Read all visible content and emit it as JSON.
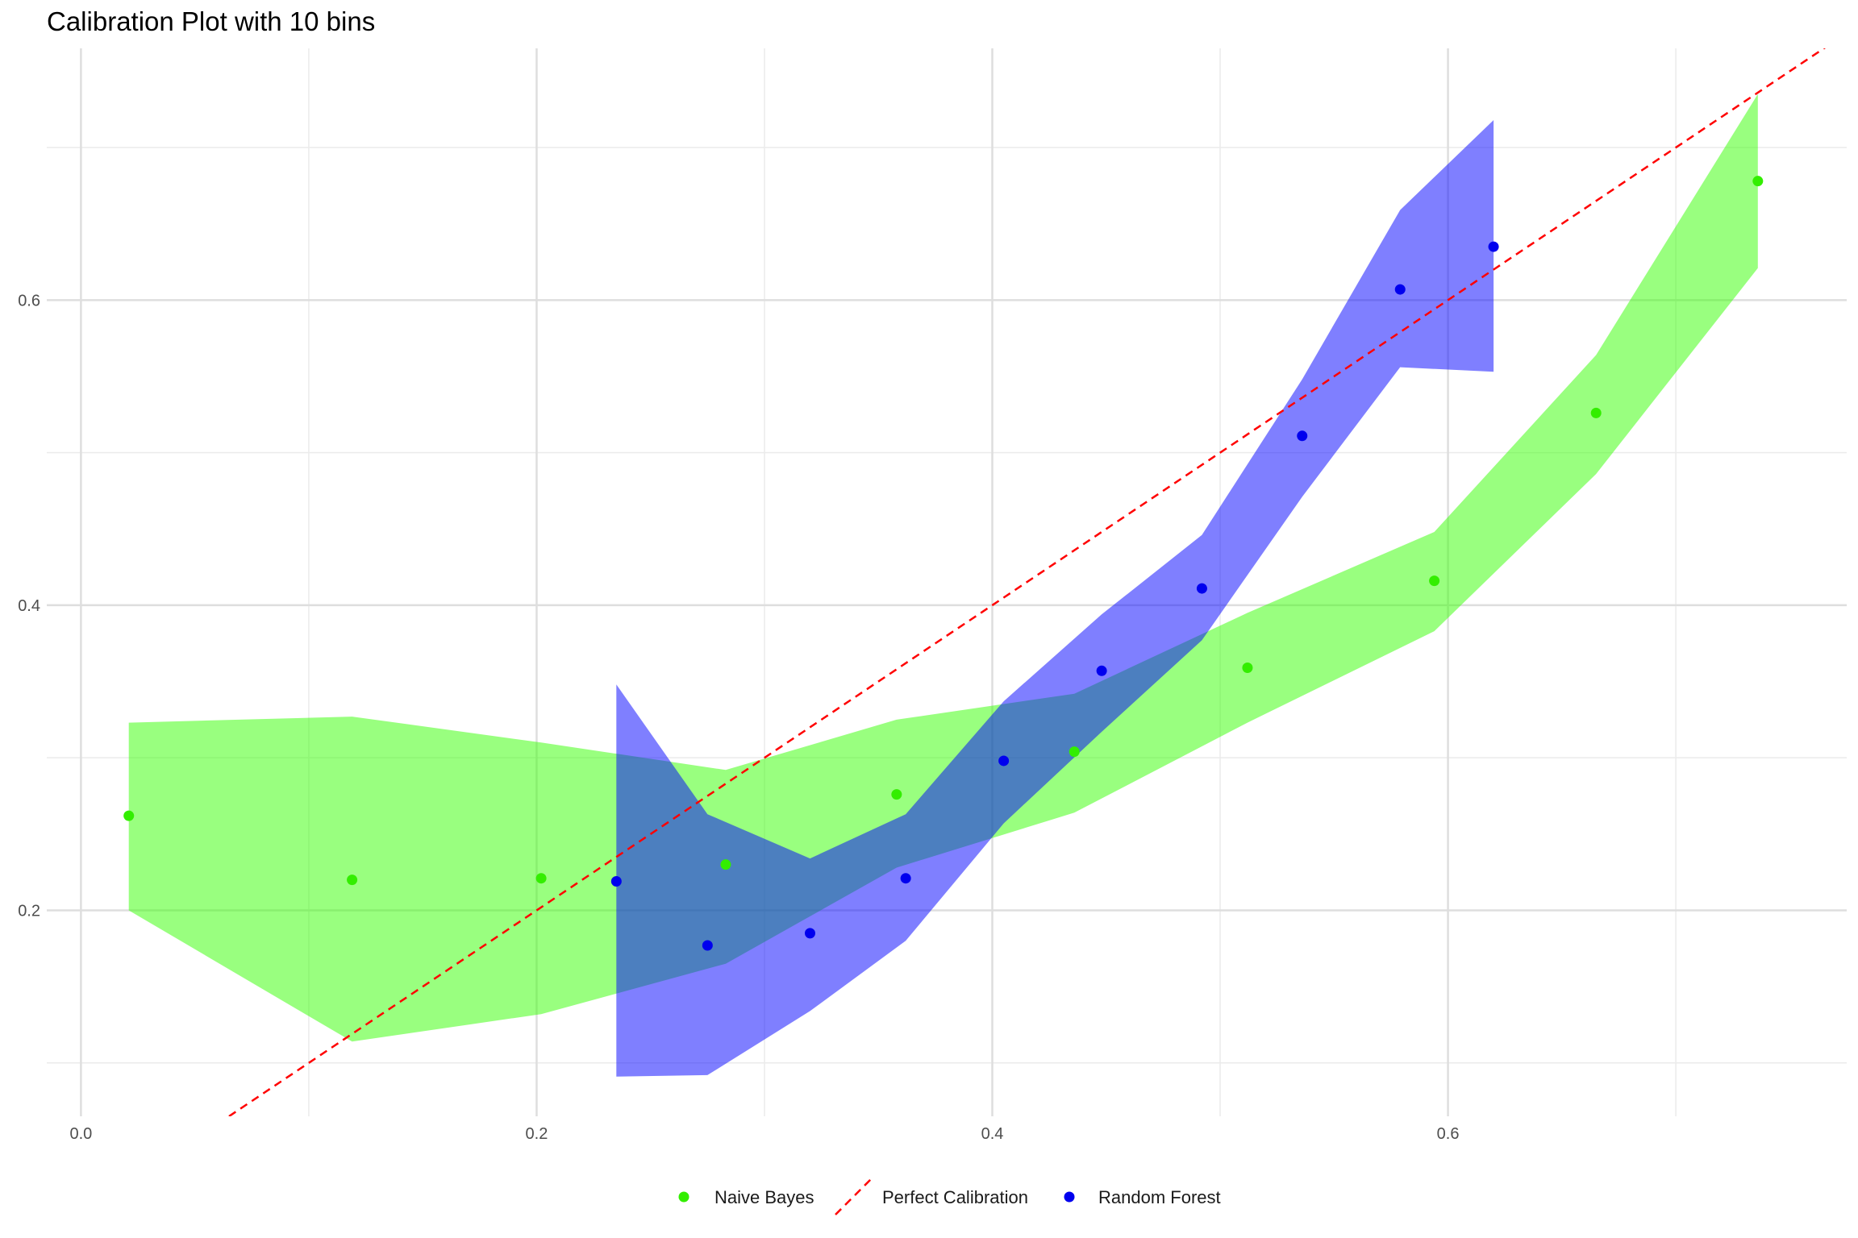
{
  "chart_data": {
    "type": "line",
    "title": "Calibration Plot with 10 bins",
    "xlabel": "",
    "ylabel": "",
    "xlim": [
      -0.015,
      0.775
    ],
    "ylim": [
      0.065,
      0.765
    ],
    "xticks": [
      0.0,
      0.2,
      0.4,
      0.6
    ],
    "xtick_labels": [
      "0.0",
      "0.2",
      "0.4",
      "0.6"
    ],
    "xminor": [
      0.1,
      0.3,
      0.5,
      0.7
    ],
    "yticks": [
      0.2,
      0.4,
      0.6
    ],
    "ytick_labels": [
      "0.2",
      "0.4",
      "0.6"
    ],
    "yminor": [
      0.1,
      0.3,
      0.5,
      0.7
    ],
    "grid": true,
    "legend_position": "bottom",
    "series": [
      {
        "name": "Naive Bayes",
        "kind": "points+ribbon",
        "color": "#33ee00",
        "ribbon_color": "#33ff00",
        "x": [
          0.021,
          0.119,
          0.202,
          0.283,
          0.358,
          0.436,
          0.512,
          0.594,
          0.665,
          0.736
        ],
        "y": [
          0.262,
          0.22,
          0.221,
          0.23,
          0.276,
          0.304,
          0.359,
          0.416,
          0.526,
          0.678
        ],
        "lower": [
          0.2,
          0.114,
          0.132,
          0.165,
          0.228,
          0.264,
          0.323,
          0.383,
          0.486,
          0.621
        ],
        "upper": [
          0.323,
          0.327,
          0.31,
          0.292,
          0.325,
          0.342,
          0.395,
          0.448,
          0.564,
          0.735
        ]
      },
      {
        "name": "Random Forest",
        "kind": "points+ribbon",
        "color": "#0000ee",
        "ribbon_color": "#0000ff",
        "x": [
          0.235,
          0.275,
          0.32,
          0.362,
          0.405,
          0.448,
          0.492,
          0.536,
          0.579,
          0.62
        ],
        "y": [
          0.219,
          0.177,
          0.185,
          0.221,
          0.298,
          0.357,
          0.411,
          0.511,
          0.607,
          0.635
        ],
        "lower": [
          0.091,
          0.092,
          0.134,
          0.18,
          0.257,
          0.317,
          0.377,
          0.471,
          0.556,
          0.553
        ],
        "upper": [
          0.348,
          0.263,
          0.234,
          0.263,
          0.337,
          0.394,
          0.446,
          0.548,
          0.659,
          0.718
        ]
      },
      {
        "name": "Perfect Calibration",
        "kind": "dashed-line",
        "color": "#ff0000",
        "x": [
          0.0,
          1.0
        ],
        "y": [
          0.0,
          1.0
        ]
      }
    ],
    "legend": [
      "Naive Bayes",
      "Perfect Calibration",
      "Random Forest"
    ]
  }
}
